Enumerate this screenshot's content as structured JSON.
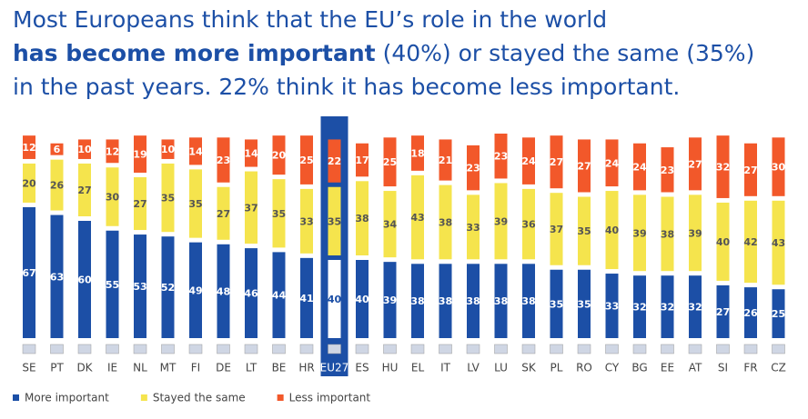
{
  "chart_data": {
    "type": "stacked-bar",
    "title": {
      "line1": "Most Europeans think that the EU’s role in the world",
      "line2_bold": "has become more important",
      "line2_rest": "(40%) or stayed the same (35%)",
      "line3": "in the past years. 22% think it has become less important."
    },
    "categories": [
      "SE",
      "PT",
      "DK",
      "IE",
      "NL",
      "MT",
      "FI",
      "DE",
      "LT",
      "BE",
      "HR",
      "EU27",
      "ES",
      "HU",
      "EL",
      "IT",
      "LV",
      "LU",
      "SK",
      "PL",
      "RO",
      "CY",
      "BG",
      "EE",
      "AT",
      "SI",
      "FR",
      "CZ"
    ],
    "highlight": "EU27",
    "series": [
      {
        "name": "More important",
        "color": "#1c4fa6",
        "values": [
          67,
          63,
          60,
          55,
          53,
          52,
          49,
          48,
          46,
          44,
          41,
          40,
          40,
          39,
          38,
          38,
          38,
          38,
          38,
          35,
          35,
          33,
          32,
          32,
          32,
          27,
          26,
          25
        ]
      },
      {
        "name": "Stayed the same",
        "color": "#f5e44d",
        "values": [
          20,
          26,
          27,
          30,
          27,
          35,
          35,
          27,
          37,
          35,
          33,
          35,
          38,
          34,
          43,
          38,
          33,
          39,
          36,
          37,
          35,
          40,
          39,
          38,
          39,
          40,
          42,
          43
        ]
      },
      {
        "name": "Less important",
        "color": "#f2582a",
        "values": [
          12,
          6,
          10,
          12,
          19,
          10,
          14,
          23,
          14,
          20,
          25,
          22,
          17,
          25,
          18,
          21,
          23,
          23,
          24,
          27,
          27,
          24,
          24,
          23,
          27,
          32,
          27,
          30
        ]
      }
    ]
  }
}
